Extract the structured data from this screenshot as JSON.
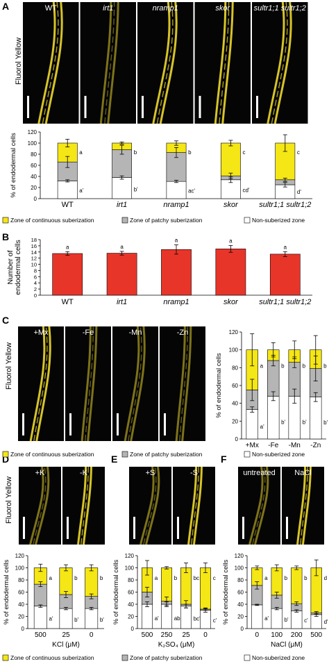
{
  "colors": {
    "continuous": "#f5e616",
    "patchy": "#b5b5b5",
    "non": "#ffffff",
    "red": "#e8352a",
    "root": "#e2cd2a",
    "microscopy_bg": "#050505"
  },
  "panelA": {
    "letter": "A",
    "stain_label": "Fluorol Yellow",
    "genotypes": [
      "WT",
      "irt1",
      "nramp1",
      "skor",
      "sultr1;1 sultr1;2"
    ],
    "italic": [
      false,
      true,
      true,
      true,
      true
    ],
    "chart_data": {
      "type": "bar",
      "stacked": true,
      "categories": [
        "WT",
        "irt1",
        "nramp1",
        "skor",
        "sultr1;1 sultr1;2"
      ],
      "ylabel": "% of endodermal cells",
      "ylim": [
        0,
        120
      ],
      "yticks": [
        0,
        20,
        40,
        60,
        80,
        100,
        120
      ],
      "series": [
        {
          "name": "Non-suberized zone",
          "color": "#ffffff",
          "values": [
            32,
            38,
            31,
            34,
            25
          ],
          "err": [
            2,
            3,
            2,
            5,
            4
          ]
        },
        {
          "name": "Zone of patchy suberization",
          "color": "#b5b5b5",
          "values": [
            34,
            50,
            52,
            7,
            9
          ],
          "err": [
            10,
            8,
            9,
            5,
            3
          ]
        },
        {
          "name": "Zone of continuous suberization",
          "color": "#f5e616",
          "values": [
            34,
            12,
            17,
            59,
            66
          ],
          "err": [
            7,
            2,
            4,
            5,
            15
          ]
        }
      ],
      "labels_total": [
        "a",
        "b",
        "b",
        "c",
        "c"
      ],
      "labels_non": [
        "a'",
        "b'",
        "ac'",
        "cd'",
        "d'"
      ]
    },
    "legend": [
      "Zone of continuous suberization",
      "Zone of patchy suberization",
      "Non-suberized zone"
    ]
  },
  "panelB": {
    "letter": "B",
    "chart_data": {
      "type": "bar",
      "categories": [
        "WT",
        "irt1",
        "nramp1",
        "skor",
        "sultr1;1 sultr1;2"
      ],
      "values": [
        13.5,
        13.6,
        14.8,
        15,
        13.3
      ],
      "err": [
        0.6,
        0.6,
        1.5,
        1.1,
        0.8
      ],
      "labels": [
        "a",
        "a",
        "a",
        "a",
        "a"
      ],
      "ylabel": "Number of endodermal cells",
      "ylim": [
        0,
        18
      ],
      "yticks": [
        0,
        2,
        4,
        6,
        8,
        10,
        12,
        14,
        16,
        18
      ]
    }
  },
  "panelC": {
    "letter": "C",
    "stain_label": "Fluorol Yellow",
    "conditions": [
      "+Mx",
      "-Fe",
      "-Mn",
      "-Zn"
    ],
    "chart_data": {
      "type": "bar",
      "stacked": true,
      "categories": [
        "+Mx",
        "-Fe",
        "-Mn",
        "-Zn"
      ],
      "ylabel": "% of endodermal cells",
      "ylim": [
        0,
        120
      ],
      "yticks": [
        0,
        20,
        40,
        60,
        80,
        100,
        120
      ],
      "series": [
        {
          "name": "Non-suberized zone",
          "color": "#ffffff",
          "values": [
            33,
            48,
            48,
            47
          ],
          "err": [
            3,
            5,
            8,
            5
          ]
        },
        {
          "name": "Zone of patchy suberization",
          "color": "#b5b5b5",
          "values": [
            22,
            40,
            38,
            32
          ],
          "err": [
            12,
            6,
            6,
            14
          ]
        },
        {
          "name": "Zone of continuous suberization",
          "color": "#f5e616",
          "values": [
            45,
            12,
            14,
            21
          ],
          "err": [
            18,
            8,
            10,
            16
          ]
        }
      ],
      "labels_total": [
        "a",
        "b",
        "b",
        "b"
      ],
      "labels_non": [
        "a'",
        "b'",
        "b'",
        "b'"
      ]
    },
    "legend": [
      "Zone of continuous suberization",
      "Zone of patchy suberization",
      "Non-suberized zone"
    ]
  },
  "panelD": {
    "letter": "D",
    "stain_label": "Fluorol Yellow",
    "conditions": [
      "+K",
      "-K"
    ],
    "chart_data": {
      "type": "bar",
      "stacked": true,
      "categories": [
        "500",
        "25",
        "0"
      ],
      "xlabel": "KCl (μM)",
      "ylabel": "% of endodermal cells",
      "ylim": [
        0,
        120
      ],
      "yticks": [
        0,
        20,
        40,
        60,
        80,
        100,
        120
      ],
      "series": [
        {
          "name": "Non-suberized zone",
          "color": "#ffffff",
          "values": [
            37,
            33,
            33
          ],
          "err": [
            2,
            2,
            2
          ]
        },
        {
          "name": "Zone of patchy suberization",
          "color": "#b5b5b5",
          "values": [
            36,
            23,
            20
          ],
          "err": [
            4,
            5,
            4
          ]
        },
        {
          "name": "Zone of continuous suberization",
          "color": "#f5e616",
          "values": [
            27,
            44,
            47
          ],
          "err": [
            6,
            5,
            5
          ]
        }
      ],
      "labels_total": [
        "a",
        "b",
        "b"
      ],
      "labels_non": [
        "a'",
        "b'",
        "b'"
      ]
    }
  },
  "panelE": {
    "letter": "E",
    "conditions": [
      "+S",
      "-S"
    ],
    "chart_data": {
      "type": "bar",
      "stacked": true,
      "categories": [
        "500",
        "250",
        "25",
        "0"
      ],
      "xlabel": "K₂SO₄ (μM)",
      "ylabel": "% of endodermal cells",
      "ylim": [
        0,
        120
      ],
      "yticks": [
        0,
        20,
        40,
        60,
        80,
        100,
        120
      ],
      "series": [
        {
          "name": "Non-suberized zone",
          "color": "#ffffff",
          "values": [
            40,
            40,
            37,
            30
          ],
          "err": [
            4,
            4,
            3,
            3
          ]
        },
        {
          "name": "Zone of patchy suberization",
          "color": "#b5b5b5",
          "values": [
            20,
            5,
            3,
            2
          ],
          "err": [
            8,
            7,
            6,
            2
          ]
        },
        {
          "name": "Zone of continuous suberization",
          "color": "#f5e616",
          "values": [
            40,
            55,
            60,
            68
          ],
          "err": [
            12,
            2,
            8,
            8
          ]
        }
      ],
      "labels_total": [
        "a",
        "b",
        "bc",
        "c"
      ],
      "labels_non": [
        "a'",
        "ab'",
        "bc'",
        "c'"
      ]
    }
  },
  "panelF": {
    "letter": "F",
    "conditions": [
      "untreated",
      "NaCl"
    ],
    "chart_data": {
      "type": "bar",
      "stacked": true,
      "categories": [
        "0",
        "100",
        "200",
        "500"
      ],
      "xlabel": "NaCl (μM)",
      "ylabel": "% of endodermal cells",
      "ylim": [
        0,
        120
      ],
      "yticks": [
        0,
        20,
        40,
        60,
        80,
        100,
        120
      ],
      "series": [
        {
          "name": "Non-suberized zone",
          "color": "#ffffff",
          "values": [
            39,
            33,
            29,
            23
          ],
          "err": [
            1,
            2,
            2,
            3
          ]
        },
        {
          "name": "Zone of patchy suberization",
          "color": "#b5b5b5",
          "values": [
            32,
            22,
            12,
            3
          ],
          "err": [
            6,
            5,
            3,
            2
          ]
        },
        {
          "name": "Zone of continuous suberization",
          "color": "#f5e616",
          "values": [
            29,
            45,
            59,
            74
          ],
          "err": [
            3,
            5,
            3,
            13
          ]
        }
      ],
      "labels_total": [
        "a",
        "b",
        "b",
        "d"
      ],
      "labels_non": [
        "a'",
        "b'",
        "c'",
        "d'"
      ]
    }
  },
  "bottom_legend": [
    "Zone of continuous suberization",
    "Zone of patchy suberization",
    "Non-suberized zone"
  ]
}
